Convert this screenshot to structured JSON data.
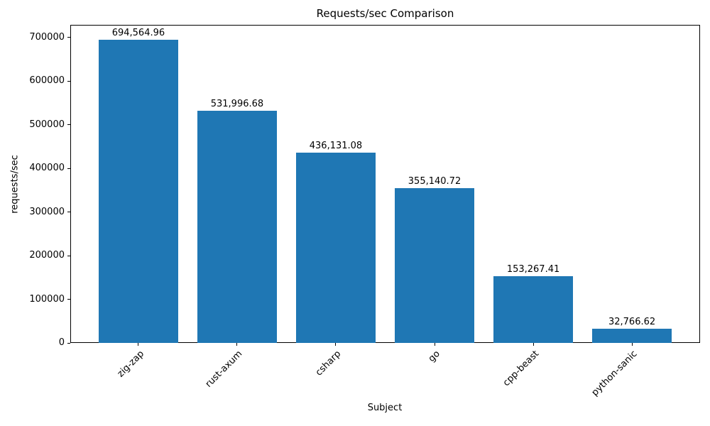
{
  "chart_data": {
    "type": "bar",
    "title": "Requests/sec Comparison",
    "xlabel": "Subject",
    "ylabel": "requests/sec",
    "categories": [
      "zig-zap",
      "rust-axum",
      "csharp",
      "go",
      "cpp-beast",
      "python-sanic"
    ],
    "values": [
      694564.96,
      531996.68,
      436131.08,
      355140.72,
      153267.41,
      32766.62
    ],
    "value_labels": [
      "694,564.96",
      "531,996.68",
      "436,131.08",
      "355,140.72",
      "153,267.41",
      "32,766.62"
    ],
    "yticks": [
      0,
      100000,
      200000,
      300000,
      400000,
      500000,
      600000,
      700000
    ],
    "ytick_labels": [
      "0",
      "100000",
      "200000",
      "300000",
      "400000",
      "500000",
      "600000",
      "700000"
    ],
    "ylim": [
      0,
      729293
    ],
    "bar_color": "#1f77b4",
    "grid": false,
    "legend": "none",
    "x_tick_rotation": 45
  }
}
